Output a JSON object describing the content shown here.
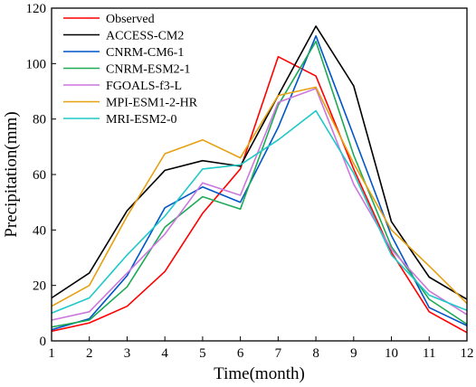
{
  "chart_data": {
    "type": "line",
    "xlabel": "Time(month)",
    "ylabel": "Precipitation(mm)",
    "xlim": [
      1,
      12
    ],
    "ylim": [
      0,
      120
    ],
    "x": [
      1,
      2,
      3,
      4,
      5,
      6,
      7,
      8,
      9,
      10,
      11,
      12
    ],
    "x_ticks": [
      "1",
      "2",
      "3",
      "4",
      "5",
      "6",
      "7",
      "8",
      "9",
      "10",
      "11",
      "12"
    ],
    "y_ticks": [
      "0",
      "20",
      "40",
      "60",
      "80",
      "100",
      "120"
    ],
    "legend_position": "top-left",
    "grid": false,
    "series": [
      {
        "name": "Observed",
        "color": "#ff0000",
        "values": [
          3.5,
          6.5,
          12.5,
          25,
          46,
          62,
          102.5,
          95.5,
          62,
          32,
          10.5,
          3
        ]
      },
      {
        "name": "ACCESS-CM2",
        "color": "#000000",
        "values": [
          15.5,
          24.5,
          47,
          61.5,
          65,
          63,
          88.5,
          113.5,
          92,
          43,
          23,
          15
        ]
      },
      {
        "name": "CNRM-CM6-1",
        "color": "#0055c8",
        "values": [
          4,
          8,
          23.5,
          48,
          55.5,
          50,
          77,
          110,
          74,
          38,
          12,
          5.5
        ]
      },
      {
        "name": "CNRM-ESM2-1",
        "color": "#1daa55",
        "values": [
          5,
          7.5,
          19.5,
          41,
          52,
          47.5,
          85,
          108,
          67,
          34,
          15,
          6
        ]
      },
      {
        "name": "FGOALS-f3-L",
        "color": "#cc77dd",
        "values": [
          7.5,
          10.5,
          24.5,
          38.5,
          57,
          52.5,
          86,
          91,
          56.5,
          33,
          18,
          9.5
        ]
      },
      {
        "name": "MPI-ESM1-2-HR",
        "color": "#e6a010",
        "values": [
          12.5,
          20,
          45,
          67.5,
          72.5,
          66,
          88.5,
          91.5,
          64,
          40,
          27,
          13.5
        ]
      },
      {
        "name": "MRI-ESM2-0",
        "color": "#20c8c8",
        "values": [
          10,
          15.5,
          31,
          45,
          62,
          63.5,
          72.5,
          83,
          60.5,
          31,
          16.5,
          11
        ]
      }
    ]
  }
}
